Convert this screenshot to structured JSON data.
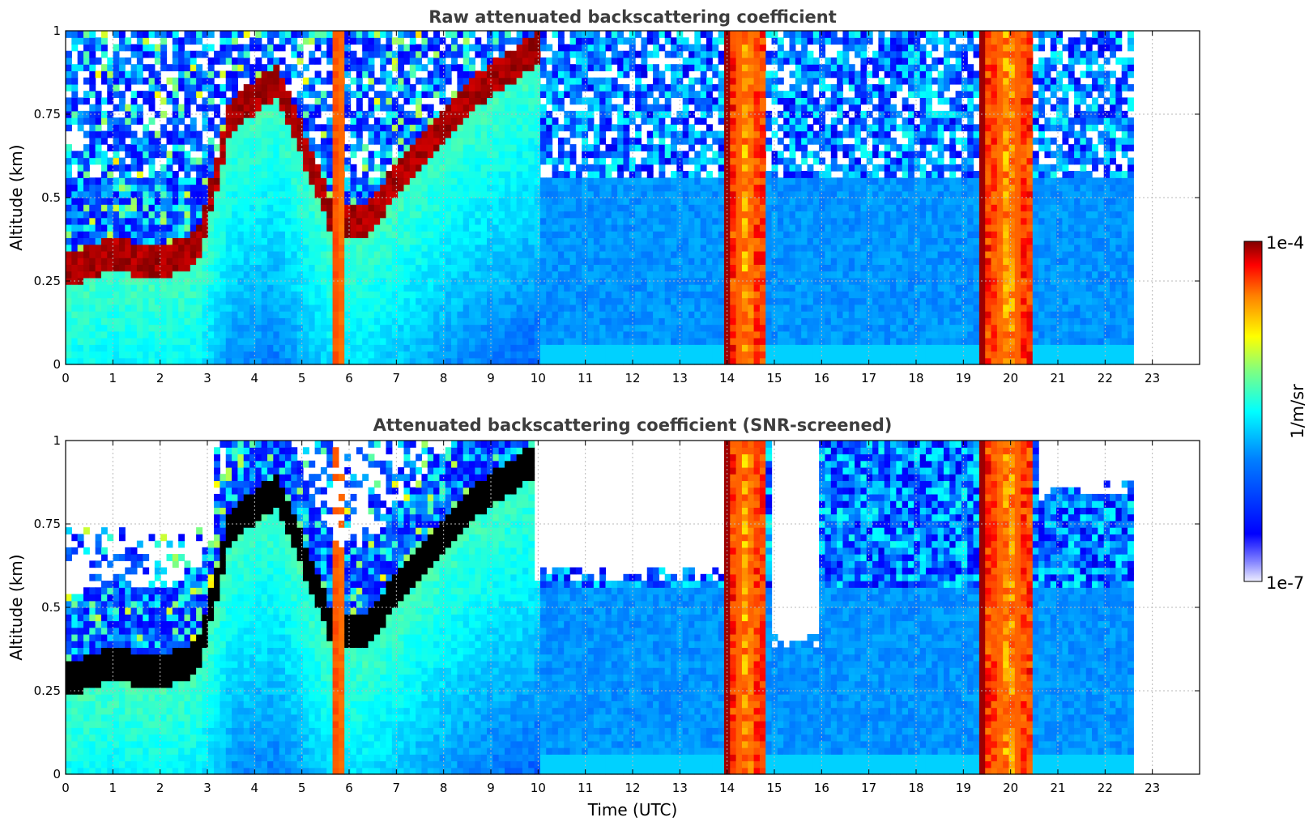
{
  "chart_data": [
    {
      "type": "heatmap",
      "title": "Raw attenuated backscattering coefficient",
      "xlabel": "",
      "ylabel": "Altitude (km)",
      "xlim": [
        0,
        24
      ],
      "ylim": [
        0,
        1
      ],
      "x_ticks": [
        "0",
        "1",
        "2",
        "3",
        "4",
        "5",
        "6",
        "7",
        "8",
        "9",
        "10",
        "11",
        "12",
        "13",
        "14",
        "15",
        "16",
        "17",
        "18",
        "19",
        "20",
        "21",
        "22",
        "23"
      ],
      "y_ticks": [
        "0",
        "0.25",
        "0.5",
        "0.75",
        "1"
      ],
      "grid": true,
      "data_end_time": 22.6,
      "screened": false,
      "aerosol_layer_top": [
        {
          "t": 0.0,
          "alt": 0.28
        },
        {
          "t": 1.0,
          "alt": 0.33
        },
        {
          "t": 2.0,
          "alt": 0.3
        },
        {
          "t": 2.8,
          "alt": 0.35
        },
        {
          "t": 3.5,
          "alt": 0.75
        },
        {
          "t": 4.5,
          "alt": 0.85
        },
        {
          "t": 5.6,
          "alt": 0.45
        },
        {
          "t": 6.3,
          "alt": 0.42
        },
        {
          "t": 7.0,
          "alt": 0.55
        },
        {
          "t": 8.5,
          "alt": 0.8
        },
        {
          "t": 10.0,
          "alt": 0.95
        }
      ],
      "strong_signal_periods": [
        {
          "start": 5.6,
          "end": 5.95
        },
        {
          "start": 13.95,
          "end": 14.8
        },
        {
          "start": 19.35,
          "end": 20.5
        }
      ]
    },
    {
      "type": "heatmap",
      "title": "Attenuated backscattering coefficient (SNR-screened)",
      "xlabel": "Time (UTC)",
      "ylabel": "Altitude (km)",
      "xlim": [
        0,
        24
      ],
      "ylim": [
        0,
        1
      ],
      "x_ticks": [
        "0",
        "1",
        "2",
        "3",
        "4",
        "5",
        "6",
        "7",
        "8",
        "9",
        "10",
        "11",
        "12",
        "13",
        "14",
        "15",
        "16",
        "17",
        "18",
        "19",
        "20",
        "21",
        "22",
        "23"
      ],
      "y_ticks": [
        "0",
        "0.25",
        "0.5",
        "0.75",
        "1"
      ],
      "grid": true,
      "data_end_time": 22.6,
      "screened": true,
      "screened_out_regions": [
        {
          "start": 0.0,
          "end": 3.1,
          "above_alt": 0.72
        },
        {
          "start": 9.9,
          "end": 13.9,
          "above_alt": 0.6
        },
        {
          "start": 14.9,
          "end": 16.0,
          "above_alt": 0.4
        },
        {
          "start": 20.6,
          "end": 22.6,
          "above_alt": 0.85
        }
      ],
      "strong_signal_periods": [
        {
          "start": 5.6,
          "end": 5.95
        },
        {
          "start": 13.95,
          "end": 14.8
        },
        {
          "start": 19.35,
          "end": 20.5
        }
      ]
    }
  ],
  "colorbar": {
    "label": "1/m/sr",
    "max_label": "1e-4",
    "min_label": "1e-7",
    "colormap": "jet"
  }
}
